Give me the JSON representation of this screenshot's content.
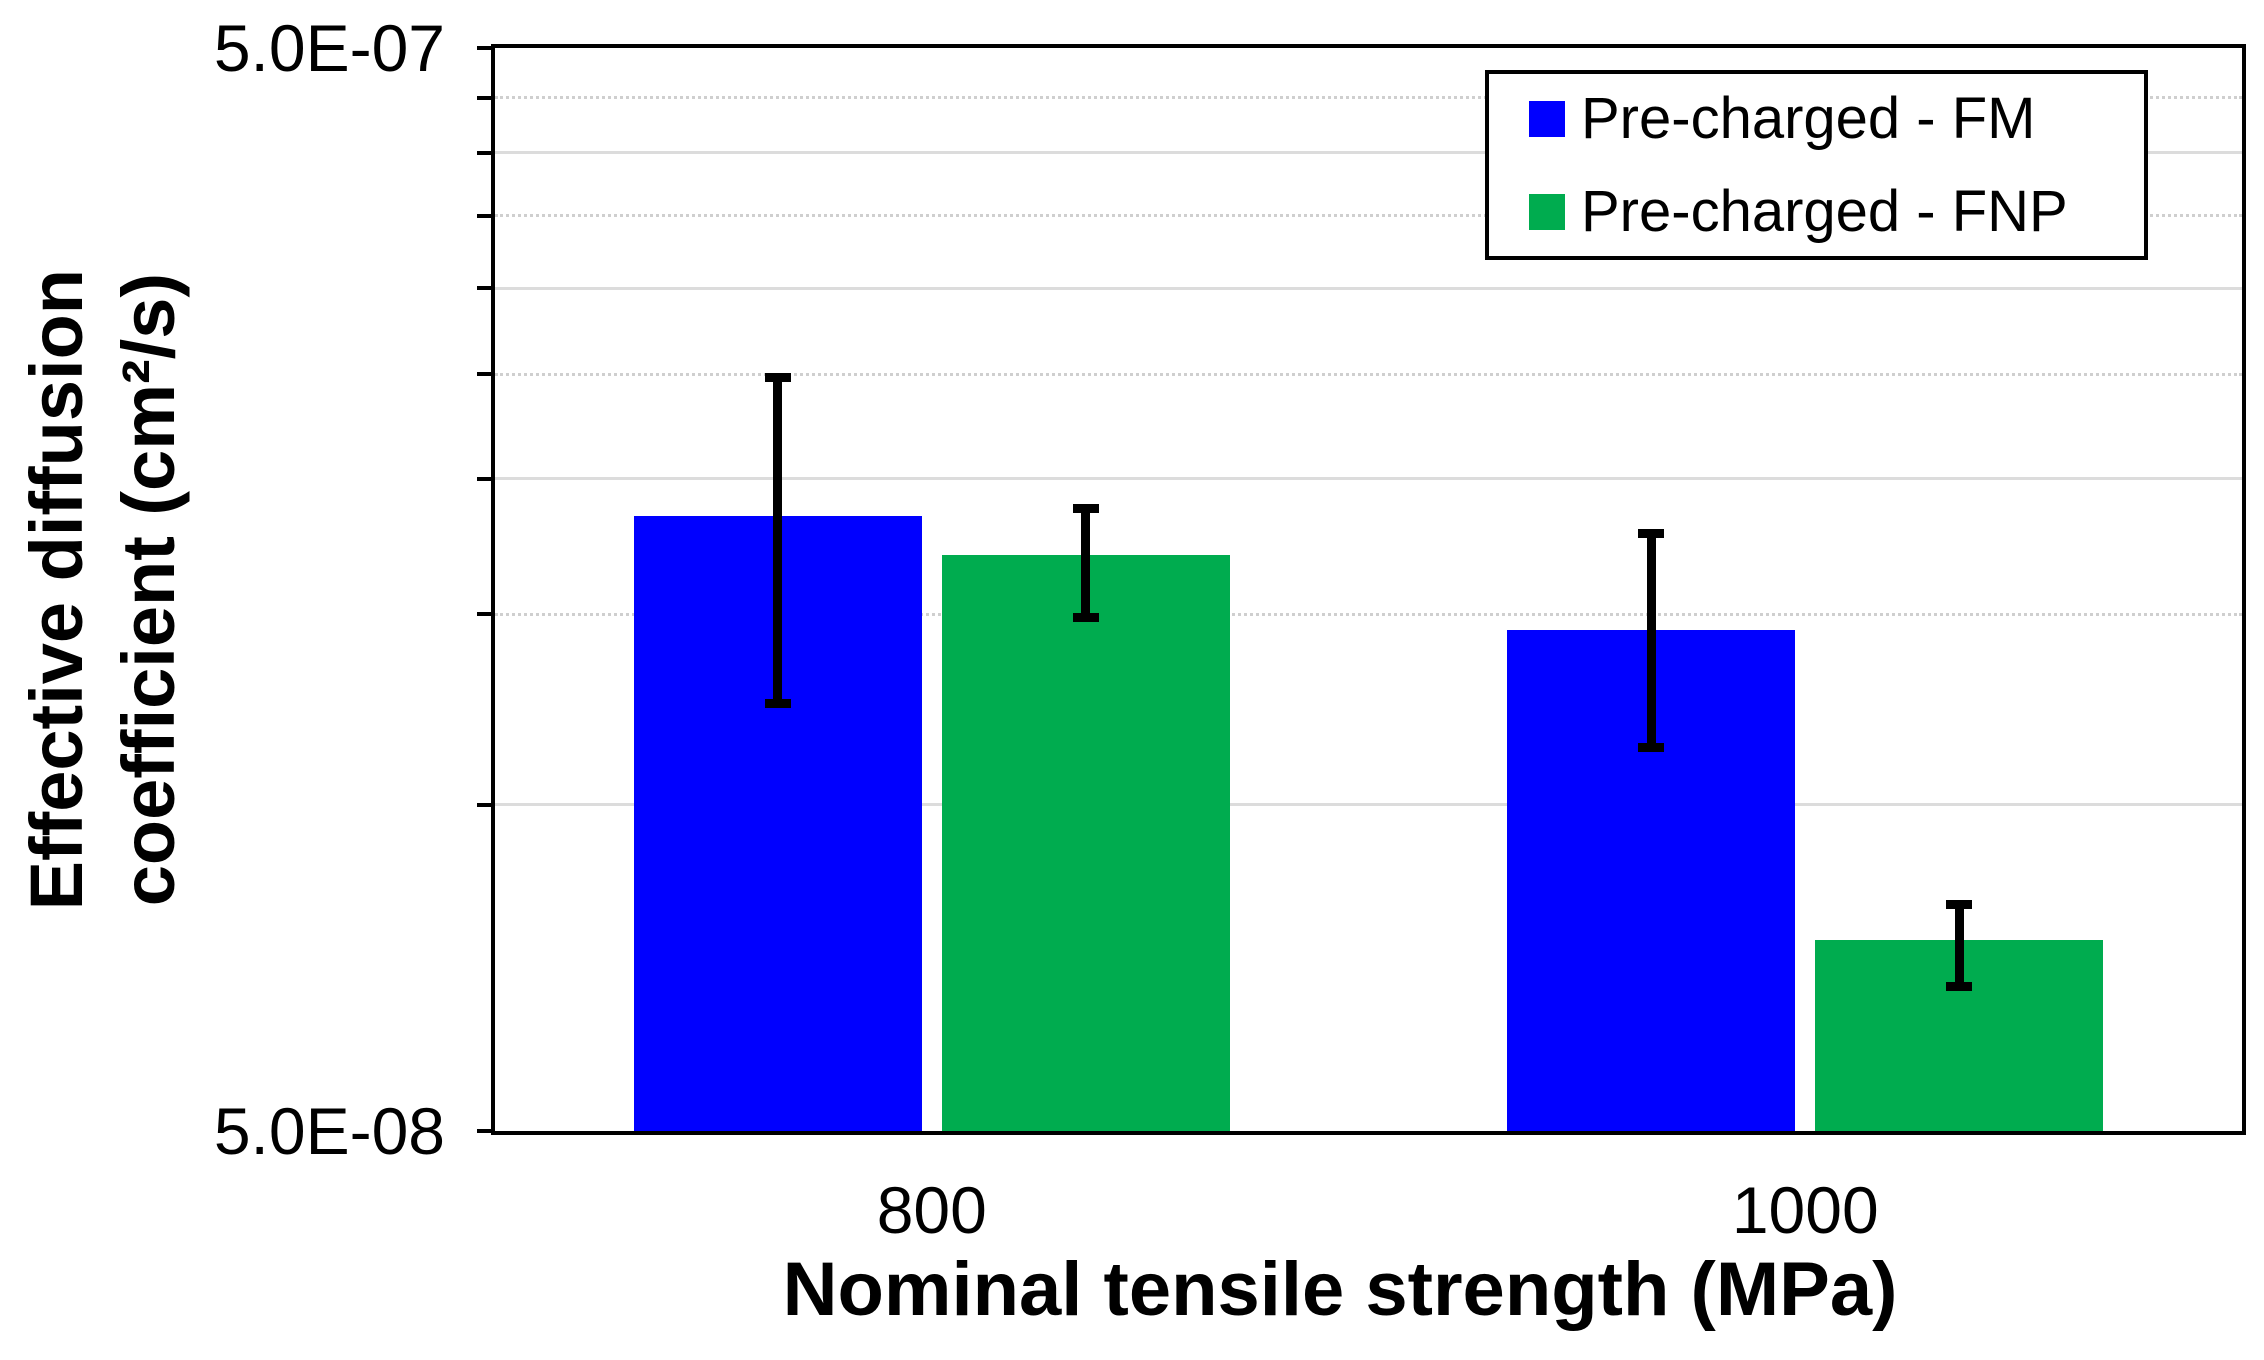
{
  "chart_data": {
    "type": "bar",
    "title": "",
    "xlabel": "Nominal tensile strength (MPa)",
    "ylabel": "Effective diffusion coefficient (cm²/s)",
    "ylabel_lines": [
      "Effective diffusion",
      "coefficient (cm²/s)"
    ],
    "y_scale": "log",
    "ylim": [
      5e-08,
      5e-07
    ],
    "ytick_labels": {
      "top": "5.0E-07",
      "bottom": "5.0E-08"
    },
    "yticks": [
      5e-07,
      4.5e-07,
      4e-07,
      3.5e-07,
      3e-07,
      2.5e-07,
      2e-07,
      1.5e-07,
      1e-07,
      5e-08
    ],
    "gridlines": {
      "solid": [
        4e-07,
        3e-07,
        2e-07,
        1e-07
      ],
      "dotted": [
        4.5e-07,
        3.5e-07,
        2.5e-07,
        1.5e-07
      ]
    },
    "grid": true,
    "legend_position": "top-right",
    "categories": [
      "800",
      "1000"
    ],
    "series": [
      {
        "name": "Pre-charged - FM",
        "color": "#0000FF",
        "values": [
          1.85e-07,
          1.45e-07
        ],
        "error_low": [
          1.24e-07,
          1.13e-07
        ],
        "error_high": [
          2.48e-07,
          1.78e-07
        ]
      },
      {
        "name": "Pre-charged - FNP",
        "color": "#00AC4F",
        "values": [
          1.7e-07,
          7.5e-08
        ],
        "error_low": [
          1.49e-07,
          6.8e-08
        ],
        "error_high": [
          1.88e-07,
          8.1e-08
        ]
      }
    ],
    "error_bar_color": "#000000",
    "axis_color": "#000000"
  }
}
